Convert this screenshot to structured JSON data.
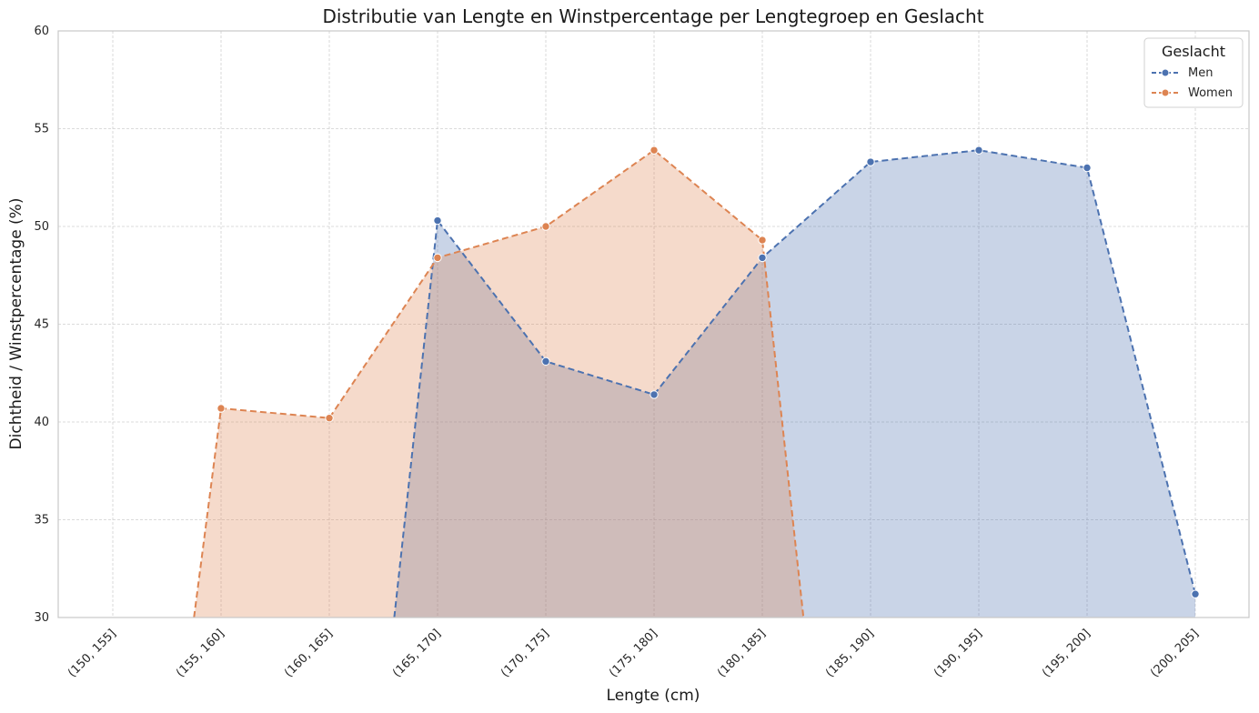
{
  "chart_data": {
    "type": "line",
    "title": "Distributie van Lengte en Winstpercentage per Lengtegroep en Geslacht",
    "xlabel": "Lengte (cm)",
    "ylabel": "Dichtheid / Winstpercentage (%)",
    "categories": [
      "(150, 155]",
      "(155, 160]",
      "(160, 165]",
      "(165, 170]",
      "(170, 175]",
      "(175, 180]",
      "(180, 185]",
      "(185, 190]",
      "(190, 195]",
      "(195, 200]",
      "(200, 205]"
    ],
    "ylim": [
      30,
      60
    ],
    "yticks": [
      30,
      35,
      40,
      45,
      50,
      55,
      60
    ],
    "grid": true,
    "filled_area": true,
    "legend": {
      "title": "Geslacht",
      "position": "top-right"
    },
    "series": [
      {
        "name": "Men",
        "color": "#4c72b0",
        "values": [
          null,
          null,
          null,
          50.3,
          43.1,
          41.4,
          48.4,
          53.3,
          53.9,
          53.0,
          31.2
        ],
        "area_start": 2.6
      },
      {
        "name": "Women",
        "color": "#dd8452",
        "values": [
          null,
          40.7,
          40.2,
          48.4,
          50.0,
          53.9,
          49.3,
          null,
          null,
          null,
          null
        ],
        "area_end": 6.38,
        "area_start": 0.75
      }
    ]
  }
}
